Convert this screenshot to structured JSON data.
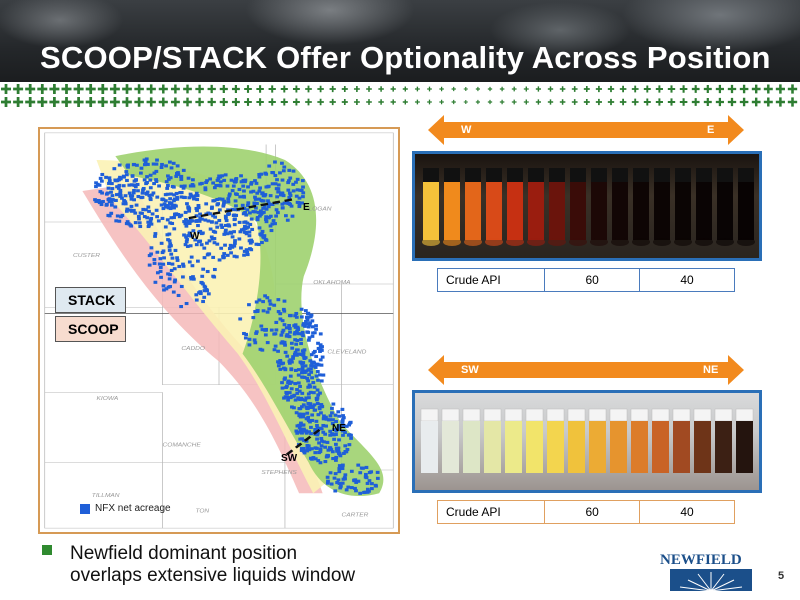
{
  "title": "SCOOP/STACK Offer Optionality Across Position",
  "map": {
    "stack_label": "STACK",
    "scoop_label": "SCOOP",
    "legend_label": "NFX net acreage",
    "label_w": "W",
    "label_e": "E",
    "label_ne": "NE",
    "label_sw": "SW",
    "county_labels": [
      "LOGAN",
      "OKLAHOMA",
      "CLEVELAND",
      "CUSTER",
      "CADDO",
      "KIOWA",
      "COMANCHE",
      "STEPHENS",
      "CARTER",
      "TILLMAN",
      "ТОN"
    ]
  },
  "top_panel": {
    "arrow_left": "W",
    "arrow_right": "E",
    "table_header": "Crude API",
    "values": [
      "60",
      "40"
    ]
  },
  "bottom_panel": {
    "arrow_left": "SW",
    "arrow_right": "NE",
    "table_header": "Crude API",
    "values": [
      "60",
      "40"
    ]
  },
  "bullet": {
    "line1": "Newfield dominant position",
    "line2": "overlaps extensive liquids window"
  },
  "logo_text": "NEWFIELD",
  "page_number": "5",
  "colors": {
    "title": "#ffffff",
    "arrow": "#f28a1e",
    "acreage": "#1f5fd8",
    "bullet": "#2f8a2f",
    "logo": "#1b4f8a"
  }
}
